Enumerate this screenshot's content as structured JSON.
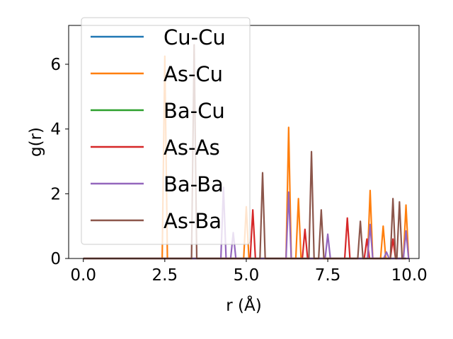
{
  "chart_data": {
    "type": "line",
    "xlabel": "r (Å)",
    "ylabel": "g(r)",
    "xlim": [
      -0.45,
      10.3
    ],
    "ylim": [
      0,
      7.2
    ],
    "xticks": [
      0.0,
      2.5,
      5.0,
      7.5,
      10.0
    ],
    "xtick_labels": [
      "0.0",
      "2.5",
      "5.0",
      "7.5",
      "10.0"
    ],
    "yticks": [
      0,
      2,
      4,
      6
    ],
    "ytick_labels": [
      "0",
      "2",
      "4",
      "6"
    ],
    "grid": false,
    "legend_position": "top-left",
    "peak_halfwidth": 0.08,
    "x_range": [
      0.0,
      9.9
    ],
    "series": [
      {
        "name": "Cu-Cu",
        "color": "#1f77b4",
        "peaks": []
      },
      {
        "name": "As-Cu",
        "color": "#ff7f0e",
        "peaks": [
          [
            2.5,
            6.25
          ],
          [
            5.0,
            1.6
          ],
          [
            6.3,
            4.05
          ],
          [
            6.6,
            1.85
          ],
          [
            8.8,
            2.1
          ],
          [
            9.2,
            1.0
          ],
          [
            9.9,
            1.65
          ]
        ]
      },
      {
        "name": "Ba-Cu",
        "color": "#2ca02c",
        "peaks": []
      },
      {
        "name": "As-As",
        "color": "#d62728",
        "peaks": [
          [
            5.2,
            1.5
          ],
          [
            6.8,
            0.9
          ],
          [
            8.1,
            1.25
          ],
          [
            8.7,
            0.6
          ],
          [
            9.5,
            0.6
          ]
        ]
      },
      {
        "name": "Ba-Ba",
        "color": "#9467bd",
        "peaks": [
          [
            4.3,
            2.2
          ],
          [
            4.6,
            0.8
          ],
          [
            6.3,
            2.05
          ],
          [
            7.5,
            0.75
          ],
          [
            8.8,
            1.05
          ],
          [
            9.3,
            0.2
          ],
          [
            9.9,
            0.85
          ]
        ]
      },
      {
        "name": "As-Ba",
        "color": "#8c564b",
        "peaks": [
          [
            3.4,
            6.6
          ],
          [
            5.5,
            2.65
          ],
          [
            7.0,
            3.3
          ],
          [
            7.3,
            1.5
          ],
          [
            8.5,
            1.15
          ],
          [
            9.5,
            1.85
          ],
          [
            9.7,
            1.75
          ]
        ]
      }
    ]
  }
}
